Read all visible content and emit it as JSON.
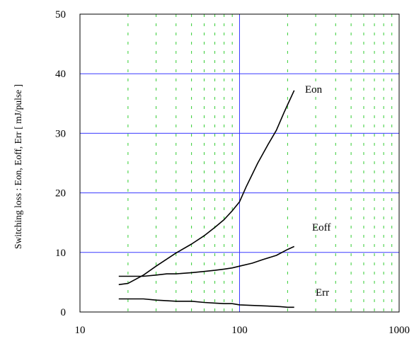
{
  "chart_data": {
    "type": "line",
    "title": "",
    "xlabel": "",
    "ylabel": "Switching loss  :  Eon, Eoff, Err  [ mJ/pulse ]",
    "x_scale": "log",
    "xlim": [
      10,
      1000
    ],
    "ylim": [
      0,
      50
    ],
    "x_ticks": [
      10,
      100,
      1000
    ],
    "x_tick_labels": [
      "10",
      "100",
      "1000"
    ],
    "y_ticks": [
      0,
      10,
      20,
      30,
      40,
      50
    ],
    "y_tick_labels": [
      "0",
      "10",
      "20",
      "30",
      "40",
      "50"
    ],
    "grid": {
      "horizontal_major": true,
      "vertical_major": true,
      "vertical_minor": true,
      "major_color": "#3a3aff",
      "minor_color": "#33cc33",
      "minor_style": "dashed"
    },
    "legend": "none",
    "series": [
      {
        "name": "Eon",
        "color": "#000000",
        "x": [
          17.5,
          20,
          25,
          30,
          40,
          50,
          60,
          70,
          80,
          90,
          100,
          110,
          130,
          150,
          170,
          190,
          200,
          220
        ],
        "y": [
          4.6,
          4.8,
          6.2,
          7.7,
          9.9,
          11.4,
          12.8,
          14.2,
          15.5,
          17.0,
          18.5,
          21.0,
          25.0,
          28.0,
          30.5,
          33.5,
          34.8,
          37.2
        ]
      },
      {
        "name": "Eoff",
        "color": "#000000",
        "x": [
          17.5,
          20,
          25,
          30,
          35,
          40,
          50,
          60,
          70,
          80,
          90,
          100,
          120,
          140,
          170,
          200,
          220
        ],
        "y": [
          6.0,
          6.0,
          6.0,
          6.2,
          6.4,
          6.4,
          6.6,
          6.8,
          7.0,
          7.2,
          7.4,
          7.7,
          8.2,
          8.8,
          9.5,
          10.5,
          11.0
        ]
      },
      {
        "name": "Err",
        "color": "#000000",
        "x": [
          17.5,
          20,
          25,
          30,
          40,
          50,
          60,
          70,
          80,
          90,
          100,
          120,
          150,
          180,
          200,
          220
        ],
        "y": [
          2.2,
          2.2,
          2.2,
          2.0,
          1.8,
          1.8,
          1.6,
          1.5,
          1.4,
          1.4,
          1.2,
          1.1,
          1.0,
          0.9,
          0.8,
          0.8
        ]
      }
    ],
    "annotations": [
      {
        "text": "Eon",
        "series": "Eon"
      },
      {
        "text": "Eoff",
        "series": "Eoff"
      },
      {
        "text": "Err",
        "series": "Err"
      }
    ]
  }
}
